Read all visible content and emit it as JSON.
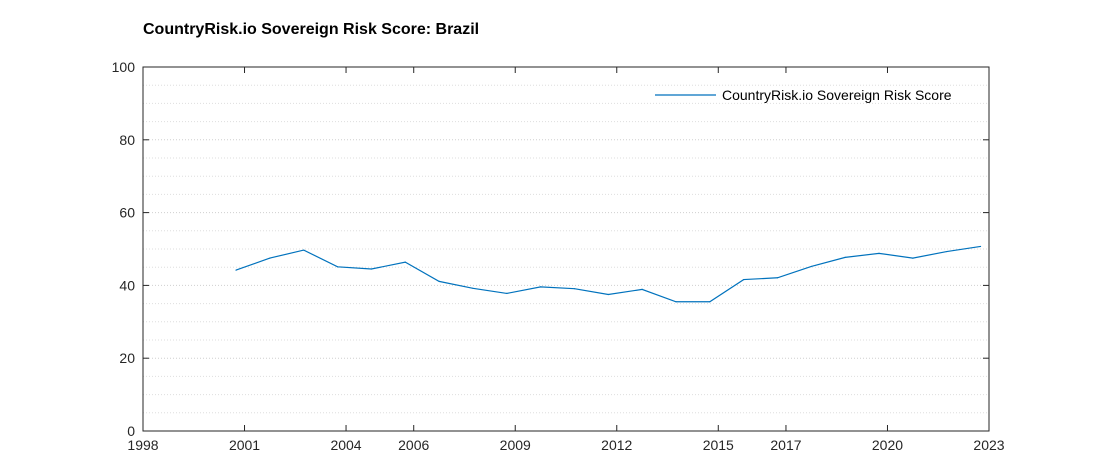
{
  "chart_data": {
    "type": "line",
    "title": "CountryRisk.io Sovereign Risk Score: Brazil",
    "xlabel": "",
    "ylabel": "",
    "xlim": [
      1998,
      2023
    ],
    "ylim": [
      0,
      100
    ],
    "x_ticks": [
      "1998",
      "2001",
      "2004",
      "2006",
      "2009",
      "2012",
      "2015",
      "2017",
      "2020",
      "2023"
    ],
    "x_tick_values": [
      1998,
      2001,
      2004,
      2006,
      2009,
      2012,
      2015,
      2017,
      2020,
      2023
    ],
    "y_ticks": [
      "0",
      "20",
      "40",
      "60",
      "80",
      "100"
    ],
    "y_tick_values": [
      0,
      20,
      40,
      60,
      80,
      100
    ],
    "grid": {
      "major": true,
      "minor": true
    },
    "legend": {
      "position": "top-right"
    },
    "series": [
      {
        "name": "CountryRisk.io Sovereign Risk Score",
        "color": "#0072BD",
        "x": [
          2000.75,
          2001.75,
          2002.75,
          2003.75,
          2004.75,
          2005.75,
          2006.75,
          2007.75,
          2008.75,
          2009.75,
          2010.75,
          2011.75,
          2012.75,
          2013.75,
          2014.75,
          2015.75,
          2016.75,
          2017.75,
          2018.75,
          2019.75,
          2020.75,
          2021.75,
          2022.75
        ],
        "y": [
          44.2,
          47.5,
          49.7,
          45.1,
          44.5,
          46.4,
          41.1,
          39.2,
          37.8,
          39.6,
          39.1,
          37.5,
          38.9,
          35.5,
          35.5,
          41.6,
          42.1,
          45.2,
          47.7,
          48.8,
          47.5,
          49.3,
          50.7
        ]
      }
    ]
  }
}
